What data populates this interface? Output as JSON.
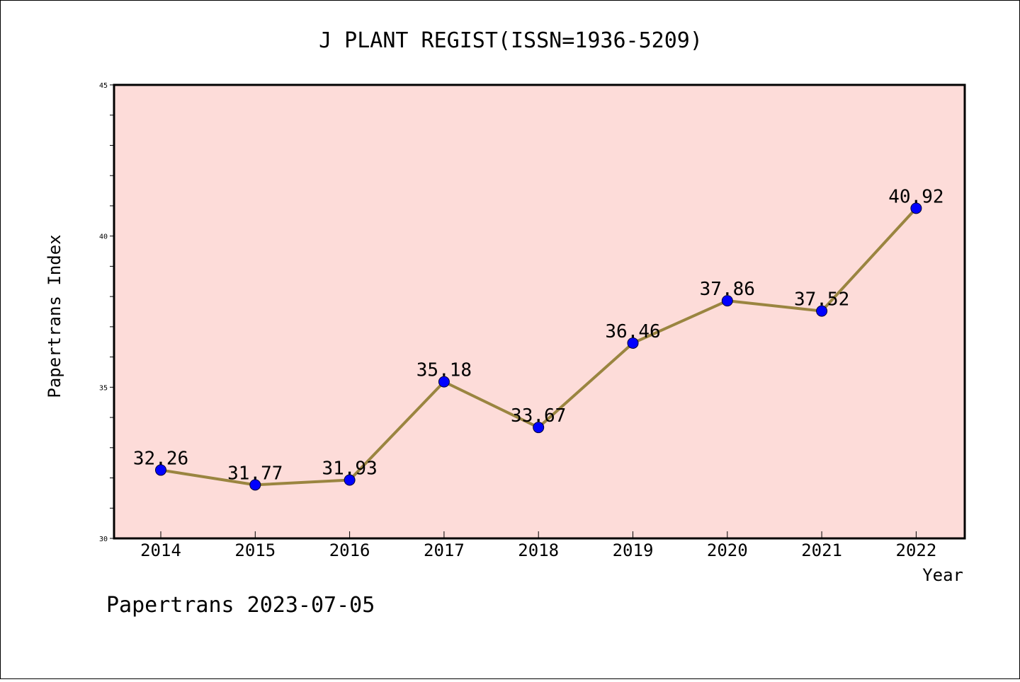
{
  "chart_data": {
    "type": "line",
    "title": "J PLANT REGIST(ISSN=1936-5209)",
    "xlabel": "Year",
    "ylabel": "Papertrans Index",
    "categories": [
      "2014",
      "2015",
      "2016",
      "2017",
      "2018",
      "2019",
      "2020",
      "2021",
      "2022"
    ],
    "series": [
      {
        "values": [
          32.26,
          31.77,
          31.93,
          35.18,
          33.67,
          36.46,
          37.86,
          37.52,
          40.92
        ],
        "labels": [
          "32.26",
          "31.77",
          "31.93",
          "35.18",
          "33.67",
          "36.46",
          "37.86",
          "37.52",
          "40.92"
        ]
      }
    ],
    "ylim": [
      30,
      45
    ],
    "yticks": [
      30,
      35,
      40,
      45
    ],
    "ytick_labels": [
      "30",
      "35",
      "40",
      "45"
    ],
    "y_minor_step": 1,
    "grid": false,
    "plot_background": "#fddcd9",
    "line_color": "#9a8540",
    "marker_color": "#0000ff",
    "footer": "Papertrans 2023-07-05"
  }
}
